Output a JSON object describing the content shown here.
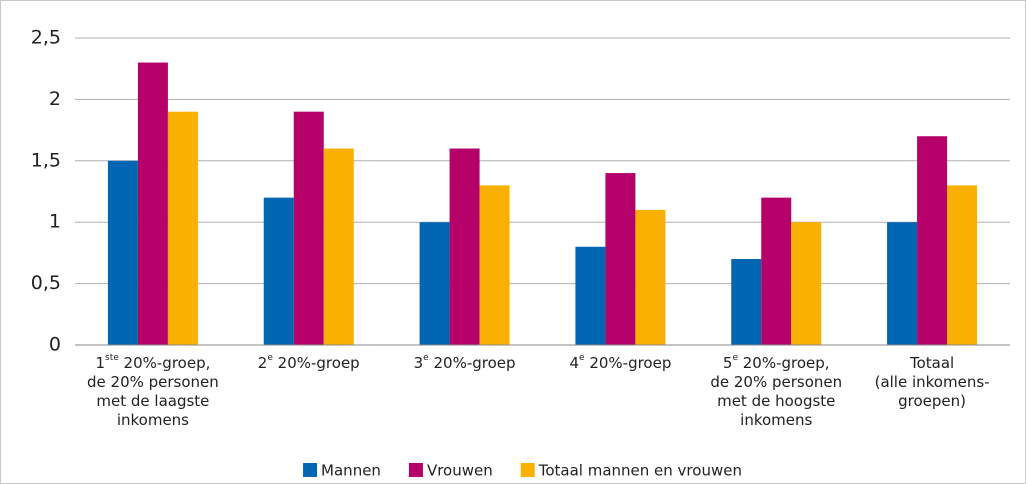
{
  "chart_data": {
    "type": "bar",
    "categories": [
      [
        "1ste 20%-groep,",
        "de 20% personen",
        "met de laagste",
        "inkomens"
      ],
      [
        "2e 20%-groep"
      ],
      [
        "3e 20%-groep"
      ],
      [
        "4e 20%-groep"
      ],
      [
        "5e 20%-groep,",
        "de 20% personen",
        "met de hoogste",
        "inkomens"
      ],
      [
        "Totaal",
        "(alle inkomens-",
        "groepen)"
      ]
    ],
    "series": [
      {
        "name": "Mannen",
        "color": "#0066b3",
        "values": [
          1.5,
          1.2,
          1.0,
          0.8,
          0.7,
          1.0
        ]
      },
      {
        "name": "Vrouwen",
        "color": "#b5006a",
        "values": [
          2.3,
          1.9,
          1.6,
          1.4,
          1.2,
          1.7
        ]
      },
      {
        "name": "Totaal mannen en vrouwen",
        "color": "#f9b000",
        "values": [
          1.9,
          1.6,
          1.3,
          1.1,
          1.0,
          1.3
        ]
      }
    ],
    "ylim": [
      0,
      2.5
    ],
    "yticks": [
      0,
      {
        "value": 0.5,
        "label": "0,5"
      },
      1,
      {
        "value": 1.5,
        "label": "1,5"
      },
      2,
      {
        "value": 2.5,
        "label": "2,5"
      }
    ],
    "grid": true,
    "legend": "bottom"
  }
}
